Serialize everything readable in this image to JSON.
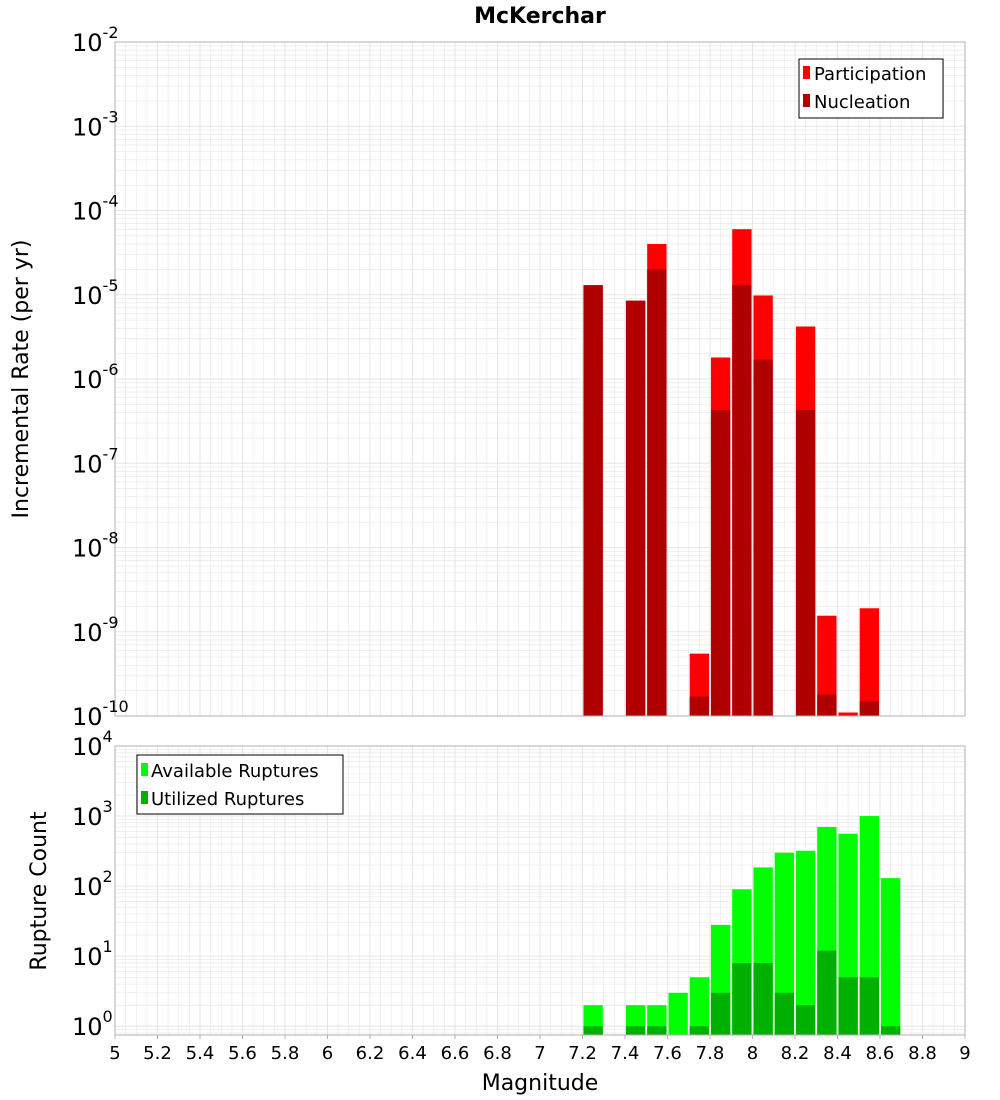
{
  "title": "McKerchar",
  "colors": {
    "participation": "#ff0000",
    "nucleation": "#b00000",
    "available": "#00ff00",
    "utilized": "#00b000",
    "grid": "#e6e6e6",
    "frame": "#b0b0b0"
  },
  "chart_data": [
    {
      "type": "bar",
      "title": "McKerchar",
      "xlabel": "Magnitude",
      "ylabel": "Incremental Rate (per yr)",
      "yscale": "log",
      "xlim": [
        5,
        9
      ],
      "ylim": [
        1e-10,
        0.01
      ],
      "grid": true,
      "legend": "top-right",
      "x": [
        7.25,
        7.45,
        7.55,
        7.75,
        7.85,
        7.95,
        8.05,
        8.25,
        8.35,
        8.45,
        8.55
      ],
      "series": [
        {
          "name": "Participation",
          "values": [
            1.3e-05,
            8.5e-06,
            4e-05,
            5.5e-10,
            1.8e-06,
            6e-05,
            9.8e-06,
            4.2e-06,
            1.55e-09,
            1.1e-10,
            1.9e-09
          ]
        },
        {
          "name": "Nucleation",
          "values": [
            1.3e-05,
            8.5e-06,
            2e-05,
            1.7e-10,
            4.3e-07,
            1.3e-05,
            1.7e-06,
            4.3e-07,
            1.8e-10,
            null,
            1.5e-10
          ]
        }
      ]
    },
    {
      "type": "bar",
      "xlabel": "Magnitude",
      "ylabel": "Rupture Count",
      "yscale": "log",
      "xlim": [
        5,
        9
      ],
      "ylim": [
        0.75,
        10000
      ],
      "grid": true,
      "legend": "top-left",
      "x": [
        7.25,
        7.45,
        7.55,
        7.65,
        7.75,
        7.85,
        7.95,
        8.05,
        8.15,
        8.25,
        8.35,
        8.45,
        8.55,
        8.65
      ],
      "series": [
        {
          "name": "Available Ruptures",
          "values": [
            2,
            2,
            2,
            3,
            5,
            28,
            90,
            185,
            300,
            320,
            700,
            560,
            1000,
            130
          ]
        },
        {
          "name": "Utilized Ruptures",
          "values": [
            1,
            1,
            1,
            null,
            1,
            3,
            8,
            8,
            3,
            2,
            12,
            5,
            5,
            1
          ]
        }
      ]
    }
  ],
  "x_tick_labels": [
    "5",
    "5.2",
    "5.4",
    "5.6",
    "5.8",
    "6",
    "6.2",
    "6.4",
    "6.6",
    "6.8",
    "7",
    "7.2",
    "7.4",
    "7.6",
    "7.8",
    "8",
    "8.2",
    "8.4",
    "8.6",
    "8.8",
    "9"
  ],
  "top_y_ticks": [
    {
      "base": "10",
      "exp": "-10"
    },
    {
      "base": "10",
      "exp": "-9"
    },
    {
      "base": "10",
      "exp": "-8"
    },
    {
      "base": "10",
      "exp": "-7"
    },
    {
      "base": "10",
      "exp": "-6"
    },
    {
      "base": "10",
      "exp": "-5"
    },
    {
      "base": "10",
      "exp": "-4"
    },
    {
      "base": "10",
      "exp": "-3"
    },
    {
      "base": "10",
      "exp": "-2"
    }
  ],
  "bottom_y_ticks": [
    {
      "base": "10",
      "exp": "0"
    },
    {
      "base": "10",
      "exp": "1"
    },
    {
      "base": "10",
      "exp": "2"
    },
    {
      "base": "10",
      "exp": "3"
    },
    {
      "base": "10",
      "exp": "4"
    }
  ]
}
